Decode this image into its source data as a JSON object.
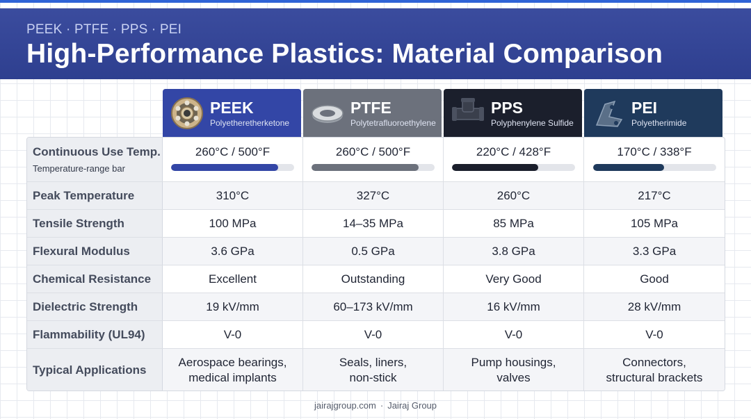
{
  "header": {
    "kicker": "PEEK · PTFE · PPS · PEI",
    "title": "High-Performance Plastics: Material Comparison"
  },
  "materials": [
    {
      "abbr": "PEEK",
      "name": "Polyetheretherketone",
      "color": "#3346a6",
      "icon": "bearing-icon"
    },
    {
      "abbr": "PTFE",
      "name": "Polytetrafluoroethylene",
      "color": "#6c717c",
      "icon": "washer-icon"
    },
    {
      "abbr": "PPS",
      "name": "Polyphenylene Sulfide",
      "color": "#1b1f2c",
      "icon": "pipe-fitting-icon"
    },
    {
      "abbr": "PEI",
      "name": "Polyetherimide",
      "color": "#1f3a5c",
      "icon": "bracket-icon"
    }
  ],
  "rows": {
    "continuous_temp": {
      "label": "Continuous Use Temp.",
      "sublabel": "Temperature-range bar",
      "values": [
        "260°C / 500°F",
        "260°C / 500°F",
        "220°C / 428°F",
        "170°C / 338°F"
      ],
      "bar_fraction": [
        0.87,
        0.87,
        0.7,
        0.58
      ],
      "bar_colors": [
        "#3346a6",
        "#6c717c",
        "#1b1f2c",
        "#1f3a5c"
      ]
    },
    "peak_temp": {
      "label": "Peak Temperature",
      "values": [
        "310°C",
        "327°C",
        "260°C",
        "217°C"
      ]
    },
    "tensile": {
      "label": "Tensile Strength",
      "values": [
        "100 MPa",
        "14–35 MPa",
        "85 MPa",
        "105 MPa"
      ]
    },
    "flexural": {
      "label": "Flexural Modulus",
      "values": [
        "3.6 GPa",
        "0.5 GPa",
        "3.8 GPa",
        "3.3 GPa"
      ]
    },
    "chemical": {
      "label": "Chemical Resistance",
      "values": [
        "Excellent",
        "Outstanding",
        "Very Good",
        "Good"
      ]
    },
    "dielectric": {
      "label": "Dielectric Strength",
      "values": [
        "19 kV/mm",
        "60–173 kV/mm",
        "16 kV/mm",
        "28 kV/mm"
      ]
    },
    "flammability": {
      "label": "Flammability (UL94)",
      "values": [
        "V-0",
        "V-0",
        "V-0",
        "V-0"
      ]
    },
    "applications": {
      "label": "Typical Applications",
      "values": [
        [
          "Aerospace bearings,",
          "medical implants"
        ],
        [
          "Seals, liners,",
          "non-stick"
        ],
        [
          "Pump housings,",
          "valves"
        ],
        [
          "Connectors,",
          "structural brackets"
        ]
      ]
    }
  },
  "footer": {
    "site": "jairajgroup.com",
    "separator": "·",
    "brand": "Jairaj Group"
  }
}
